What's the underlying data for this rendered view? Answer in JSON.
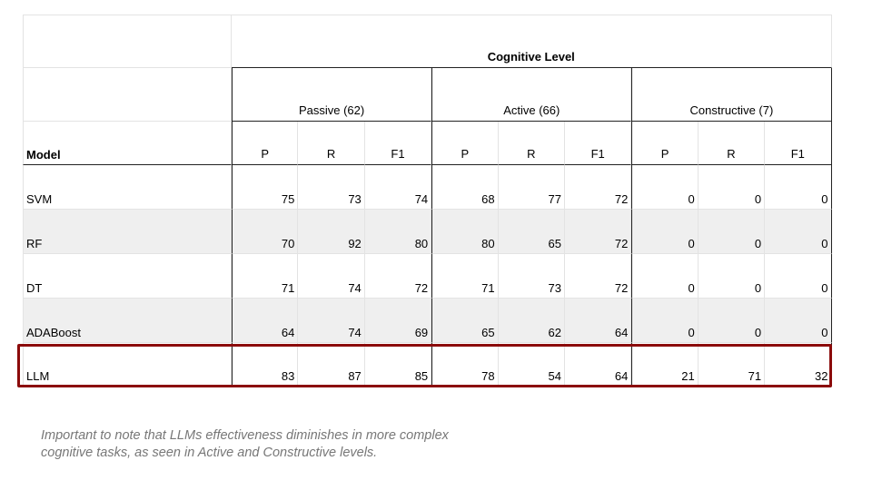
{
  "table": {
    "group_header": "Cognitive Level",
    "model_header": "Model",
    "groups": [
      "Passive (62)",
      "Active (66)",
      "Constructive (7)"
    ],
    "metrics": [
      "P",
      "R",
      "F1"
    ],
    "rows": [
      {
        "model": "SVM",
        "values": [
          "75",
          "73",
          "74",
          "68",
          "77",
          "72",
          "0",
          "0",
          "0"
        ]
      },
      {
        "model": "RF",
        "values": [
          "70",
          "92",
          "80",
          "80",
          "65",
          "72",
          "0",
          "0",
          "0"
        ]
      },
      {
        "model": "DT",
        "values": [
          "71",
          "74",
          "72",
          "71",
          "73",
          "72",
          "0",
          "0",
          "0"
        ]
      },
      {
        "model": "ADABoost",
        "values": [
          "64",
          "74",
          "69",
          "65",
          "62",
          "64",
          "0",
          "0",
          "0"
        ]
      },
      {
        "model": "LLM",
        "values": [
          "83",
          "87",
          "85",
          "78",
          "54",
          "64",
          "21",
          "71",
          "32"
        ]
      }
    ]
  },
  "highlight_color": "#8b0b0b",
  "note": {
    "line1": "Important to note that LLMs effectiveness diminishes in more complex",
    "line2": "cognitive tasks, as seen in Active and Constructive levels."
  }
}
